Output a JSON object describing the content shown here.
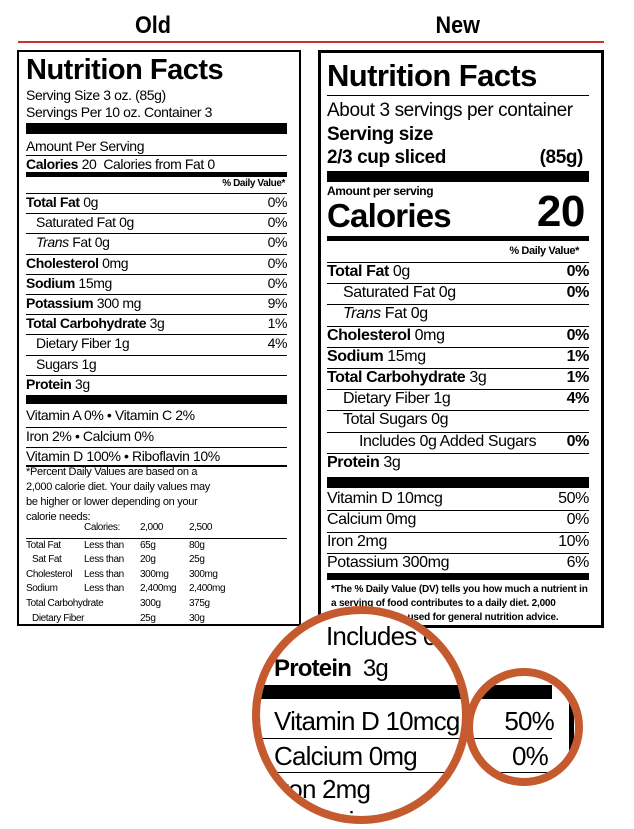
{
  "headers": {
    "old": "Old",
    "new": "New"
  },
  "old": {
    "title": "Nutrition Facts",
    "serving_size": "Serving Size 3 oz. (85g)",
    "servings_per": "Servings Per 10 oz. Container 3",
    "amount_per": "Amount Per Serving",
    "calories_label": "Calories",
    "calories_value": "20",
    "calories_fat": "Calories from Fat 0",
    "dv_header": "% Daily Value*",
    "rows": [
      {
        "label": "Total Fat",
        "amount": "0g",
        "dv": "0%",
        "bold": true
      },
      {
        "label": "Saturated Fat",
        "amount": "0g",
        "dv": "0%",
        "indent": true
      },
      {
        "label": "Trans",
        "label2": "Fat",
        "amount": "0g",
        "dv": "0%",
        "indent": true,
        "italic": true
      },
      {
        "label": "Cholesterol",
        "amount": "0mg",
        "dv": "0%",
        "bold": true
      },
      {
        "label": "Sodium",
        "amount": "15mg",
        "dv": "0%",
        "bold": true
      },
      {
        "label": "Potassium",
        "amount": "300 mg",
        "dv": "9%",
        "bold": true
      },
      {
        "label": "Total Carbohydrate",
        "amount": "3g",
        "dv": "1%",
        "bold": true
      },
      {
        "label": "Dietary Fiber",
        "amount": "1g",
        "dv": "4%",
        "indent": true
      },
      {
        "label": "Sugars",
        "amount": "1g",
        "dv": "",
        "indent": true
      },
      {
        "label": "Protein",
        "amount": "3g",
        "dv": "",
        "bold": true
      }
    ],
    "vitamins": [
      "Vitamin A 0% • Vitamin C 2%",
      "Iron 2% • Calcium 0%",
      "Vitamin D 100% • Riboflavin 10%"
    ],
    "footnote": "*Percent Daily Values are based on a 2,000 calorie diet. Your daily values may be higher or lower depending on your calorie needs:",
    "table": {
      "header": [
        "",
        "Calories:",
        "2,000",
        "2,500"
      ],
      "rows": [
        [
          "Total Fat",
          "Less than",
          "65g",
          "80g"
        ],
        [
          "Sat Fat",
          "Less than",
          "20g",
          "25g"
        ],
        [
          "Cholesterol",
          "Less than",
          "300mg",
          "300mg"
        ],
        [
          "Sodium",
          "Less than",
          "2,400mg",
          "2,400mg"
        ],
        [
          "Total Carbohydrate",
          "",
          "300g",
          "375g"
        ],
        [
          "Dietary Fiber",
          "",
          "25g",
          "30g"
        ]
      ]
    }
  },
  "new": {
    "title": "Nutrition Facts",
    "servings_per": "About 3 servings per container",
    "serving_size_label": "Serving size",
    "serving_size_desc": "2/3 cup sliced",
    "serving_size_g": "(85g)",
    "amount_per": "Amount per serving",
    "calories_label": "Calories",
    "calories_value": "20",
    "dv_header": "% Daily Value*",
    "rows": [
      {
        "label": "Total Fat",
        "amount": "0g",
        "dv": "0%",
        "bold": true
      },
      {
        "label": "Saturated Fat",
        "amount": "0g",
        "dv": "0%",
        "indent": 1
      },
      {
        "label": "Trans",
        "label2": "Fat",
        "amount": "0g",
        "dv": "",
        "indent": 1,
        "italic": true
      },
      {
        "label": "Cholesterol",
        "amount": "0mg",
        "dv": "0%",
        "bold": true
      },
      {
        "label": "Sodium",
        "amount": "15mg",
        "dv": "1%",
        "bold": true
      },
      {
        "label": "Total Carbohydrate",
        "amount": "3g",
        "dv": "1%",
        "bold": true
      },
      {
        "label": "Dietary Fiber",
        "amount": "1g",
        "dv": "4%",
        "indent": 1
      },
      {
        "label": "Total Sugars",
        "amount": "0g",
        "dv": "",
        "indent": 1
      },
      {
        "label": "Includes 0g Added Sugars",
        "amount": "",
        "dv": "0%",
        "indent": 2
      },
      {
        "label": "Protein",
        "amount": "3g",
        "dv": "",
        "bold": true
      }
    ],
    "micros": [
      {
        "label": "Vitamin D 10mcg",
        "dv": "50%"
      },
      {
        "label": "Calcium 0mg",
        "dv": "0%"
      },
      {
        "label": "Iron 2mg",
        "dv": "10%"
      },
      {
        "label": "Potassium 300mg",
        "dv": "6%"
      }
    ],
    "footnote": "*The % Daily Value (DV) tells you how much a nutrient in a serving of food contributes to a daily diet. 2,000 calories a day is used for general nutrition advice."
  },
  "magnifier": {
    "color": "#c45a2d"
  }
}
